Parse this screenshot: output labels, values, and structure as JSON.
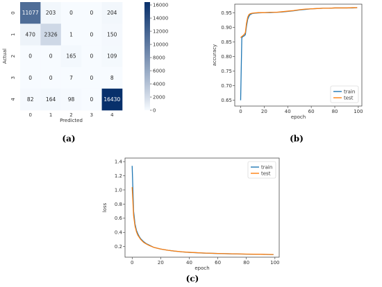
{
  "captions": [
    "(a)",
    "(b)",
    "(c)"
  ],
  "chart_data": [
    {
      "type": "heatmap",
      "row_labels": [
        "0",
        "1",
        "2",
        "3",
        "4"
      ],
      "col_labels": [
        "0",
        "1",
        "2",
        "3",
        "4"
      ],
      "xlabel": "Predicted",
      "ylabel": "Actual",
      "matrix": [
        [
          11077,
          203,
          0,
          0,
          204
        ],
        [
          470,
          2326,
          1,
          0,
          150
        ],
        [
          0,
          0,
          165,
          0,
          109
        ],
        [
          0,
          0,
          7,
          0,
          8
        ],
        [
          82,
          164,
          98,
          0,
          16430
        ]
      ],
      "colorbar": {
        "range": [
          0,
          16430
        ],
        "ticks": [
          "0",
          "2000",
          "4000",
          "6000",
          "8000",
          "10000",
          "12000",
          "14000",
          "16000"
        ],
        "colors": [
          "#f7fbff",
          "#08306b"
        ]
      }
    },
    {
      "type": "line",
      "xlabel": "epoch",
      "ylabel": "accuracy",
      "xlim": [
        -5,
        103
      ],
      "ylim": [
        0.63,
        0.98
      ],
      "xticks": [
        "0",
        "20",
        "40",
        "60",
        "80",
        "100"
      ],
      "yticks": [
        "0.65",
        "0.70",
        "0.75",
        "0.80",
        "0.85",
        "0.90",
        "0.95"
      ],
      "legend": "bottom-right",
      "series": [
        {
          "name": "train",
          "color": "#1f77b4",
          "points": [
            [
              0,
              0.65
            ],
            [
              1,
              0.865
            ],
            [
              2,
              0.869
            ],
            [
              3,
              0.871
            ],
            [
              4,
              0.875
            ],
            [
              5,
              0.905
            ],
            [
              6,
              0.928
            ],
            [
              7,
              0.938
            ],
            [
              8,
              0.944
            ],
            [
              9,
              0.946
            ],
            [
              10,
              0.948
            ],
            [
              12,
              0.949
            ],
            [
              15,
              0.95
            ],
            [
              20,
              0.951
            ],
            [
              25,
              0.951
            ],
            [
              30,
              0.952
            ],
            [
              35,
              0.953
            ],
            [
              40,
              0.955
            ],
            [
              45,
              0.957
            ],
            [
              50,
              0.96
            ],
            [
              55,
              0.962
            ],
            [
              60,
              0.964
            ],
            [
              65,
              0.965
            ],
            [
              70,
              0.966
            ],
            [
              75,
              0.966
            ],
            [
              80,
              0.967
            ],
            [
              85,
              0.967
            ],
            [
              90,
              0.967
            ],
            [
              95,
              0.967
            ],
            [
              99,
              0.968
            ]
          ]
        },
        {
          "name": "test",
          "color": "#ff7f0e",
          "points": [
            [
              0,
              0.865
            ],
            [
              1,
              0.869
            ],
            [
              2,
              0.872
            ],
            [
              3,
              0.876
            ],
            [
              4,
              0.882
            ],
            [
              5,
              0.915
            ],
            [
              6,
              0.935
            ],
            [
              7,
              0.944
            ],
            [
              8,
              0.947
            ],
            [
              9,
              0.948
            ],
            [
              10,
              0.949
            ],
            [
              12,
              0.95
            ],
            [
              15,
              0.951
            ],
            [
              20,
              0.951
            ],
            [
              25,
              0.952
            ],
            [
              30,
              0.952
            ],
            [
              35,
              0.954
            ],
            [
              40,
              0.956
            ],
            [
              45,
              0.958
            ],
            [
              50,
              0.961
            ],
            [
              55,
              0.963
            ],
            [
              60,
              0.964
            ],
            [
              65,
              0.965
            ],
            [
              70,
              0.966
            ],
            [
              75,
              0.966
            ],
            [
              80,
              0.967
            ],
            [
              85,
              0.967
            ],
            [
              90,
              0.967
            ],
            [
              95,
              0.968
            ],
            [
              99,
              0.968
            ]
          ]
        }
      ]
    },
    {
      "type": "line",
      "xlabel": "epoch",
      "ylabel": "loss",
      "xlim": [
        -5,
        103
      ],
      "ylim": [
        0.05,
        1.45
      ],
      "xticks": [
        "0",
        "20",
        "40",
        "60",
        "80",
        "100"
      ],
      "yticks": [
        "0.2",
        "0.4",
        "0.6",
        "0.8",
        "1.0",
        "1.2",
        "1.4"
      ],
      "legend": "top-right",
      "series": [
        {
          "name": "train",
          "color": "#1f77b4",
          "points": [
            [
              0,
              1.34
            ],
            [
              1,
              0.7
            ],
            [
              2,
              0.52
            ],
            [
              3,
              0.43
            ],
            [
              4,
              0.38
            ],
            [
              5,
              0.34
            ],
            [
              6,
              0.31
            ],
            [
              8,
              0.27
            ],
            [
              10,
              0.24
            ],
            [
              12,
              0.22
            ],
            [
              15,
              0.19
            ],
            [
              20,
              0.165
            ],
            [
              25,
              0.148
            ],
            [
              30,
              0.135
            ],
            [
              35,
              0.125
            ],
            [
              40,
              0.118
            ],
            [
              50,
              0.108
            ],
            [
              60,
              0.102
            ],
            [
              70,
              0.097
            ],
            [
              80,
              0.093
            ],
            [
              90,
              0.09
            ],
            [
              99,
              0.087
            ]
          ]
        },
        {
          "name": "test",
          "color": "#ff7f0e",
          "points": [
            [
              0,
              1.04
            ],
            [
              1,
              0.64
            ],
            [
              2,
              0.49
            ],
            [
              3,
              0.41
            ],
            [
              4,
              0.36
            ],
            [
              5,
              0.33
            ],
            [
              6,
              0.3
            ],
            [
              8,
              0.26
            ],
            [
              10,
              0.235
            ],
            [
              12,
              0.215
            ],
            [
              15,
              0.19
            ],
            [
              20,
              0.165
            ],
            [
              25,
              0.148
            ],
            [
              30,
              0.136
            ],
            [
              35,
              0.126
            ],
            [
              40,
              0.119
            ],
            [
              50,
              0.109
            ],
            [
              60,
              0.103
            ],
            [
              70,
              0.098
            ],
            [
              80,
              0.094
            ],
            [
              90,
              0.091
            ],
            [
              99,
              0.088
            ]
          ]
        }
      ]
    }
  ]
}
